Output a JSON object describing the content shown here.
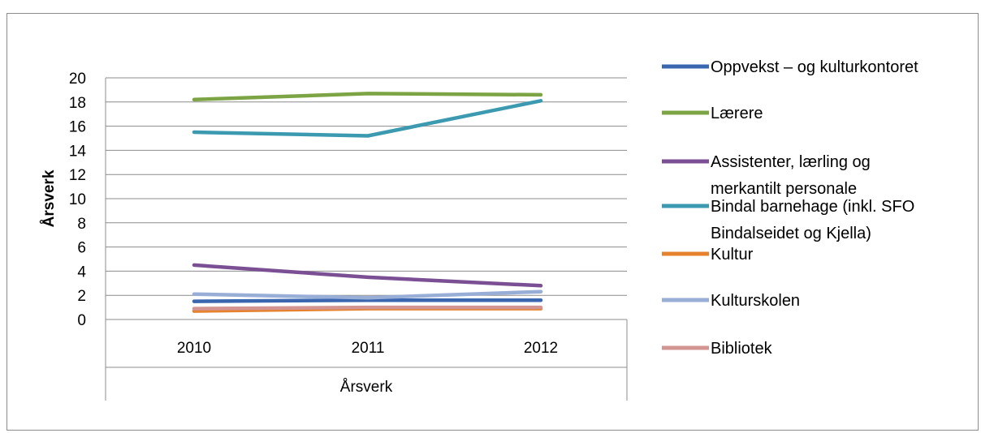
{
  "chart_data": {
    "type": "line",
    "title": "",
    "xlabel": "Årsverk",
    "ylabel": "Årsverk",
    "categories": [
      "2010",
      "2011",
      "2012"
    ],
    "ylim": [
      0,
      20
    ],
    "yticks": [
      0,
      2,
      4,
      6,
      8,
      10,
      12,
      14,
      16,
      18,
      20
    ],
    "grid": true,
    "legend_position": "right",
    "series": [
      {
        "name": "Oppvekst – og kulturkontoret",
        "color": "#4472c4",
        "stroke": "#3a66b0",
        "values": [
          1.5,
          1.6,
          1.6
        ],
        "legend_lines": [
          "Oppvekst – og kulturkontoret"
        ]
      },
      {
        "name": "Lærere",
        "color": "#77a03d",
        "stroke": "#7ca444",
        "values": [
          18.2,
          18.7,
          18.6
        ],
        "legend_lines": [
          "Lærere"
        ]
      },
      {
        "name": "Assistenter, lærling og merkantilt personale",
        "color": "#7b4f93",
        "stroke": "#7b4f93",
        "values": [
          4.5,
          3.5,
          2.8
        ],
        "legend_lines": [
          "Assistenter, lærling og",
          "merkantilt personale"
        ]
      },
      {
        "name": "Bindal barnehage (inkl. SFO Bindalseidet og Kjella)",
        "color": "#3b9ab0",
        "stroke": "#3b9ab0",
        "values": [
          15.5,
          15.2,
          18.1
        ],
        "legend_lines": [
          "Bindal barnehage (inkl. SFO",
          "Bindalseidet og Kjella)"
        ]
      },
      {
        "name": "Kultur",
        "color": "#e6822d",
        "stroke": "#e6822d",
        "values": [
          0.7,
          0.9,
          0.9
        ],
        "legend_lines": [
          "Kultur"
        ]
      },
      {
        "name": "Kulturskolen",
        "color": "#98aed6",
        "stroke": "#98aed6",
        "values": [
          2.1,
          1.8,
          2.3
        ],
        "legend_lines": [
          "Kulturskolen"
        ]
      },
      {
        "name": "Bibliotek",
        "color": "#d39592",
        "stroke": "#d39592",
        "values": [
          0.9,
          1.0,
          1.0
        ],
        "legend_lines": [
          "Bibliotek"
        ]
      }
    ]
  }
}
